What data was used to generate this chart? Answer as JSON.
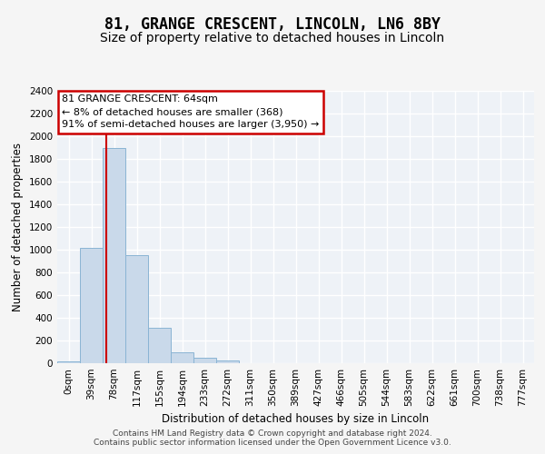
{
  "title": "81, GRANGE CRESCENT, LINCOLN, LN6 8BY",
  "subtitle": "Size of property relative to detached houses in Lincoln",
  "xlabel": "Distribution of detached houses by size in Lincoln",
  "ylabel": "Number of detached properties",
  "bin_labels": [
    "0sqm",
    "39sqm",
    "78sqm",
    "117sqm",
    "155sqm",
    "194sqm",
    "233sqm",
    "272sqm",
    "311sqm",
    "350sqm",
    "389sqm",
    "427sqm",
    "466sqm",
    "505sqm",
    "544sqm",
    "583sqm",
    "622sqm",
    "661sqm",
    "700sqm",
    "738sqm",
    "777sqm"
  ],
  "bar_values": [
    20,
    1020,
    1900,
    950,
    310,
    100,
    45,
    25,
    0,
    0,
    0,
    0,
    0,
    0,
    0,
    0,
    0,
    0,
    0,
    0,
    0
  ],
  "bar_color": "#c9d9ea",
  "bar_edge_color": "#8ab4d4",
  "ylim": [
    0,
    2400
  ],
  "yticks": [
    0,
    200,
    400,
    600,
    800,
    1000,
    1200,
    1400,
    1600,
    1800,
    2000,
    2200,
    2400
  ],
  "vline_x": 1.64,
  "vline_color": "#cc0000",
  "annotation_text": "81 GRANGE CRESCENT: 64sqm\n← 8% of detached houses are smaller (368)\n91% of semi-detached houses are larger (3,950) →",
  "annotation_box_facecolor": "#ffffff",
  "annotation_box_edgecolor": "#cc0000",
  "background_color": "#eef2f7",
  "grid_color": "#ffffff",
  "title_fontsize": 12,
  "subtitle_fontsize": 10,
  "tick_fontsize": 7.5,
  "footer_text": "Contains HM Land Registry data © Crown copyright and database right 2024.\nContains public sector information licensed under the Open Government Licence v3.0."
}
